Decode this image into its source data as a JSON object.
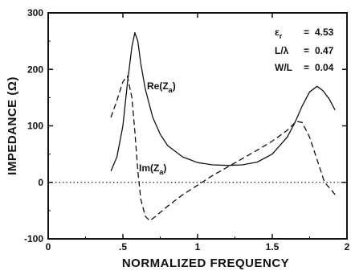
{
  "chart_data": {
    "type": "line",
    "title": "",
    "xlabel": "NORMALIZED FREQUENCY",
    "ylabel": "IMPEDANCE (Ω)",
    "xlim": [
      0,
      2
    ],
    "ylim": [
      -100,
      300
    ],
    "x_ticks": [
      "0",
      ".5",
      "1",
      "1.5",
      "2"
    ],
    "y_ticks": [
      "-100",
      "0",
      "100",
      "200",
      "300"
    ],
    "grid": false,
    "reference_line": {
      "y": 0,
      "style": "dotted"
    },
    "parameters": [
      {
        "symbol": "ε",
        "sub": "r",
        "eq": "=",
        "value": "4.53"
      },
      {
        "symbol": "L/λ",
        "sub": "",
        "eq": "=",
        "value": "0.47"
      },
      {
        "symbol": "W/L",
        "sub": "",
        "eq": "=",
        "value": "0.04"
      }
    ],
    "series": [
      {
        "name": "Re(Za)",
        "label_main": "Re(Z",
        "label_sub": "a",
        "label_close": ")",
        "style": "solid",
        "x": [
          0.42,
          0.46,
          0.5,
          0.53,
          0.56,
          0.58,
          0.6,
          0.62,
          0.65,
          0.7,
          0.75,
          0.8,
          0.9,
          1.0,
          1.1,
          1.2,
          1.3,
          1.4,
          1.5,
          1.6,
          1.65,
          1.7,
          1.75,
          1.8,
          1.84,
          1.88,
          1.92
        ],
        "y": [
          20,
          45,
          100,
          175,
          240,
          265,
          250,
          210,
          165,
          115,
          85,
          65,
          45,
          35,
          31,
          30,
          31,
          36,
          50,
          80,
          105,
          135,
          160,
          170,
          162,
          148,
          128
        ]
      },
      {
        "name": "Im(Za)",
        "label_main": "Im(Z",
        "label_sub": "a",
        "label_close": ")",
        "style": "dashed",
        "x": [
          0.42,
          0.46,
          0.5,
          0.53,
          0.56,
          0.58,
          0.6,
          0.62,
          0.65,
          0.68,
          0.72,
          0.8,
          0.9,
          1.0,
          1.1,
          1.2,
          1.3,
          1.4,
          1.5,
          1.6,
          1.66,
          1.7,
          1.75,
          1.8,
          1.85,
          1.9,
          1.93
        ],
        "y": [
          115,
          145,
          178,
          188,
          150,
          90,
          20,
          -30,
          -60,
          -68,
          -60,
          -42,
          -22,
          -5,
          12,
          27,
          42,
          57,
          73,
          92,
          108,
          106,
          80,
          40,
          0,
          -15,
          -25
        ]
      }
    ]
  }
}
